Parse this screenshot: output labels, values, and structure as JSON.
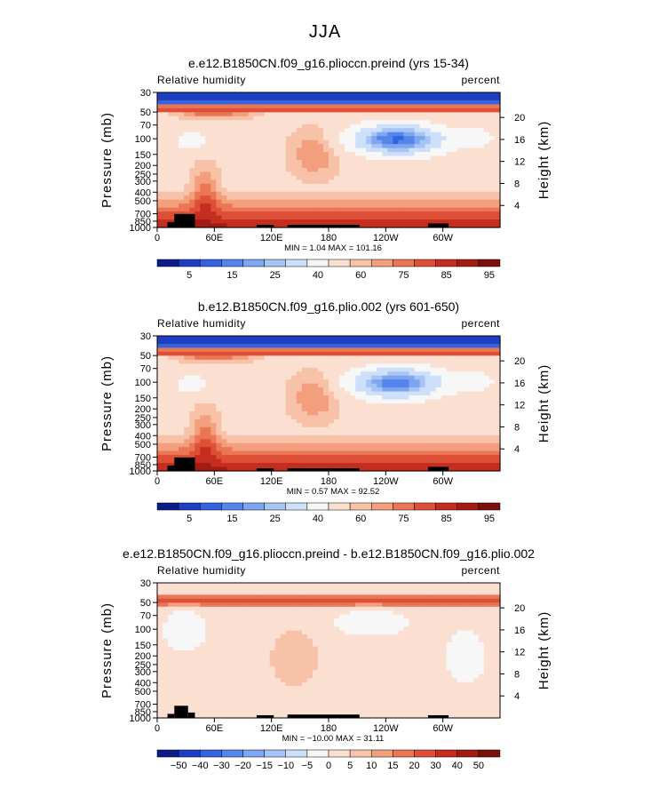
{
  "figure_title": "JJA",
  "chart_data": [
    {
      "type": "heatmap",
      "title": "e.e12.B1850CN.f09_g16.plioccn.preind (yrs 15-34)",
      "variable": "Relative humidity",
      "units": "percent",
      "ylabel": "Pressure  (mb)",
      "ylabel_right": "Height  (km)",
      "x_ticks": [
        "0",
        "60E",
        "120E",
        "180",
        "120W",
        "60W"
      ],
      "xlim": [
        0,
        360
      ],
      "pressure_ticks": [
        "30",
        "50",
        "70",
        "100",
        "150",
        "200",
        "250",
        "300",
        "400",
        "500",
        "700",
        "850",
        "1000"
      ],
      "height_ticks": [
        "20",
        "16",
        "12",
        "8",
        "4"
      ],
      "stats": "MIN =    1.04   MAX = 101.16",
      "colorbar_labels": [
        "5",
        "15",
        "25",
        "40",
        "60",
        "75",
        "85",
        "95"
      ],
      "colorbar_colors": [
        "#0b1c8a",
        "#1f3fc2",
        "#3364e0",
        "#5585ea",
        "#7ea5f0",
        "#a6c4f6",
        "#cddff9",
        "#f7f7f7",
        "#fbe0d2",
        "#f8c2a8",
        "#f39e7d",
        "#ea7655",
        "#dd4f37",
        "#c52e1f",
        "#a31c14",
        "#7b0f0c"
      ],
      "contour_levels": [
        5,
        10,
        15,
        20,
        25,
        30,
        40,
        50,
        60,
        65,
        70,
        75,
        80,
        85,
        90,
        95
      ]
    },
    {
      "type": "heatmap",
      "title": "b.e12.B1850CN.f09_g16.plio.002 (yrs 601-650)",
      "variable": "Relative humidity",
      "units": "percent",
      "ylabel": "Pressure  (mb)",
      "ylabel_right": "Height  (km)",
      "x_ticks": [
        "0",
        "60E",
        "120E",
        "180",
        "120W",
        "60W"
      ],
      "xlim": [
        0,
        360
      ],
      "pressure_ticks": [
        "30",
        "50",
        "70",
        "100",
        "150",
        "200",
        "250",
        "300",
        "400",
        "500",
        "700",
        "850",
        "1000"
      ],
      "height_ticks": [
        "20",
        "16",
        "12",
        "8",
        "4"
      ],
      "stats": "MIN =    0.57   MAX =  92.52",
      "colorbar_labels": [
        "5",
        "15",
        "25",
        "40",
        "60",
        "75",
        "85",
        "95"
      ],
      "colorbar_colors": [
        "#0b1c8a",
        "#1f3fc2",
        "#3364e0",
        "#5585ea",
        "#7ea5f0",
        "#a6c4f6",
        "#cddff9",
        "#f7f7f7",
        "#fbe0d2",
        "#f8c2a8",
        "#f39e7d",
        "#ea7655",
        "#dd4f37",
        "#c52e1f",
        "#a31c14",
        "#7b0f0c"
      ],
      "contour_levels": [
        5,
        10,
        15,
        20,
        25,
        30,
        40,
        50,
        60,
        65,
        70,
        75,
        80,
        85,
        90,
        95
      ]
    },
    {
      "type": "heatmap",
      "title": "e.e12.B1850CN.f09_g16.plioccn.preind - b.e12.B1850CN.f09_g16.plio.002",
      "variable": "Relative humidity",
      "units": "percent",
      "ylabel": "Pressure  (mb)",
      "ylabel_right": "Height  (km)",
      "x_ticks": [
        "0",
        "60E",
        "120E",
        "180",
        "120W",
        "60W"
      ],
      "xlim": [
        0,
        360
      ],
      "pressure_ticks": [
        "30",
        "50",
        "70",
        "100",
        "150",
        "200",
        "250",
        "300",
        "400",
        "500",
        "700",
        "850",
        "1000"
      ],
      "height_ticks": [
        "20",
        "16",
        "12",
        "8",
        "4"
      ],
      "stats": "MIN = −10.00   MAX =  31.11",
      "colorbar_labels": [
        "−50",
        "−40",
        "−30",
        "−20",
        "−15",
        "−10",
        "−5",
        "0",
        "5",
        "10",
        "15",
        "20",
        "30",
        "40",
        "50"
      ],
      "colorbar_colors": [
        "#0b1c8a",
        "#1f3fc2",
        "#3364e0",
        "#5585ea",
        "#7ea5f0",
        "#a6c4f6",
        "#cddff9",
        "#f7f7f7",
        "#fbe0d2",
        "#f8c2a8",
        "#f39e7d",
        "#ea7655",
        "#dd4f37",
        "#c52e1f",
        "#a31c14",
        "#7b0f0c"
      ],
      "contour_levels": [
        -50,
        -40,
        -30,
        -20,
        -15,
        -10,
        -5,
        0,
        5,
        10,
        15,
        20,
        30,
        40,
        50
      ]
    }
  ]
}
